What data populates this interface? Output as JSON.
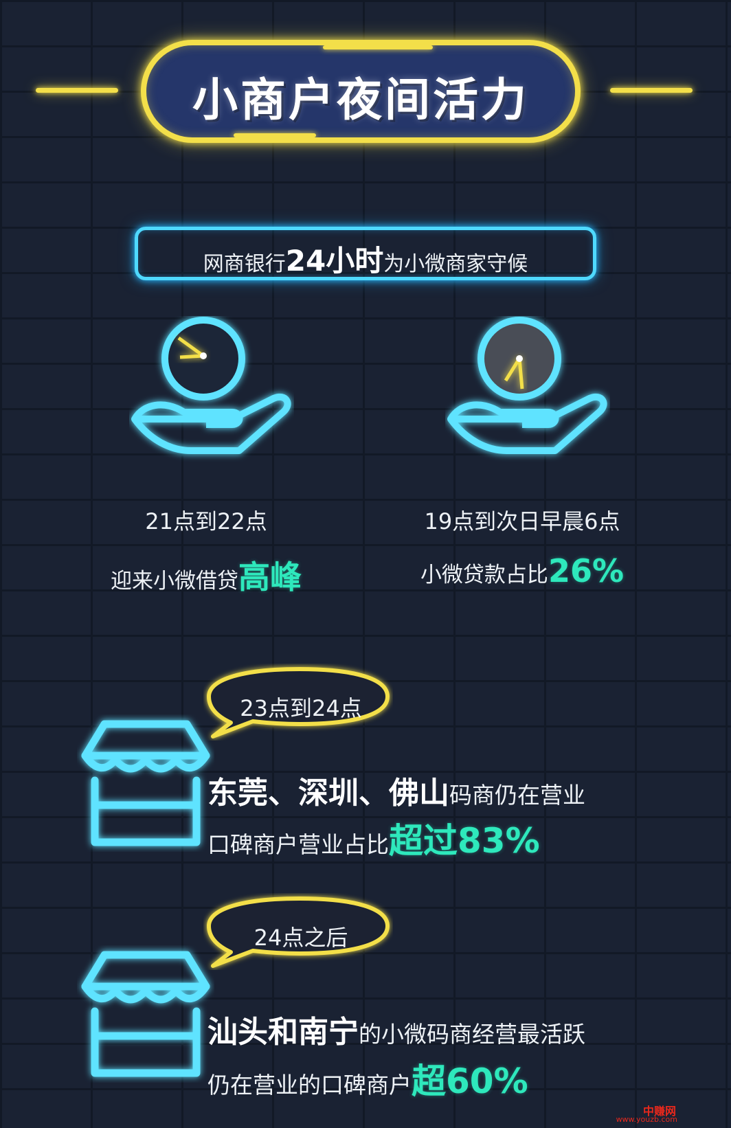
{
  "title": "小商户夜间活力",
  "subtitle": {
    "prefix": "网商银行",
    "highlight": "24小时",
    "suffix": "为小微商家守候"
  },
  "stats": [
    {
      "icon": "clock-in-hand-icon",
      "time": "21点到22点",
      "label": "迎来小微借贷",
      "highlight": "高峰"
    },
    {
      "icon": "night-clock-in-hand-icon",
      "time": "19点到次日早晨6点",
      "label": "小微贷款占比",
      "highlight": "26%"
    }
  ],
  "stores": [
    {
      "bubble": "23点到24点",
      "icon": "storefront-icon",
      "line1_bold": "东莞、深圳、佛山",
      "line1_rest": "码商仍在营业",
      "line2_text": "口碑商户营业占比",
      "line2_highlight": "超过83%"
    },
    {
      "bubble": "24点之后",
      "icon": "storefront-icon",
      "line1_bold": "汕头和南宁",
      "line1_rest": "的小微码商经营最活跃",
      "line2_text": "仍在营业的口碑商户",
      "line2_highlight": "超60%"
    }
  ],
  "watermark": {
    "name": "中赚网",
    "url": "www.youzb.com"
  },
  "colors": {
    "background": "#1a2233",
    "neon_yellow": "#f3df4a",
    "neon_cyan": "#4fd9ff",
    "highlight_green": "#2ee8bc"
  }
}
